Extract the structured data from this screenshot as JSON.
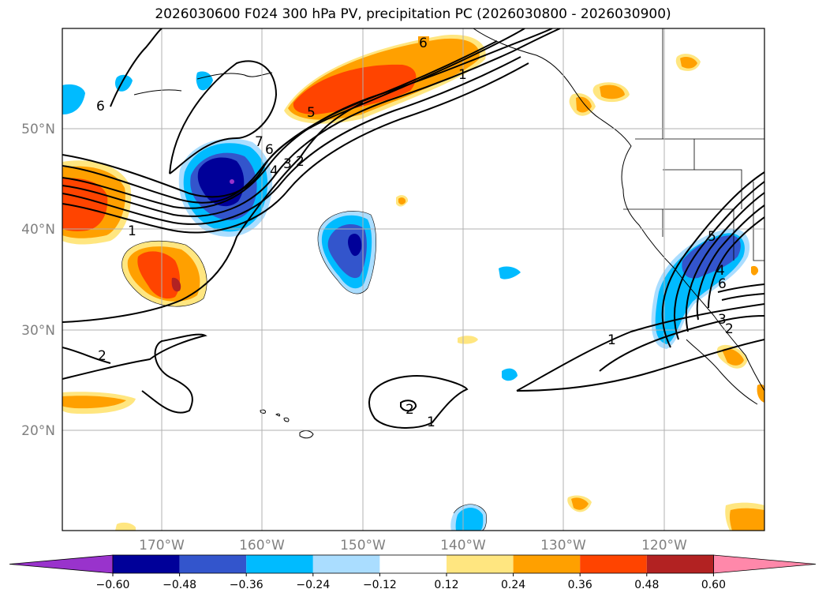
{
  "title": "2026030600 F024 300 hPa PV, precipitation PC (2026030800 - 2026030900)",
  "lat_labels": [
    "50°N",
    "40°N",
    "30°N",
    "20°N"
  ],
  "lon_labels": [
    "170°W",
    "160°W",
    "150°W",
    "140°W",
    "130°W",
    "120°W"
  ],
  "colorbar": {
    "ticks": [
      "−0.60",
      "−0.48",
      "−0.36",
      "−0.24",
      "−0.12",
      "0.12",
      "0.24",
      "0.36",
      "0.48",
      "0.60"
    ],
    "colors": [
      "#9933cc",
      "#000099",
      "#3355cc",
      "#00bbff",
      "#aaddff",
      "#ffffff",
      "#ffe680",
      "#ffa000",
      "#ff4400",
      "#b22222",
      "#ff88aa"
    ]
  },
  "contour_labels": [
    "6",
    "5",
    "1",
    "7",
    "6",
    "4",
    "3",
    "2",
    "1",
    "6",
    "2",
    "2",
    "1",
    "1",
    "4",
    "5",
    "6",
    "3",
    "2"
  ]
}
